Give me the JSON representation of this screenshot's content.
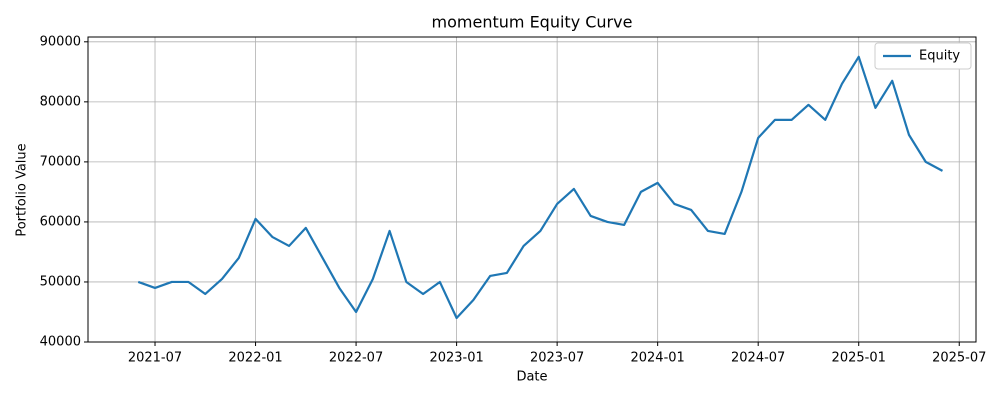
{
  "chart_data": {
    "type": "line",
    "title": "momentum Equity Curve",
    "x_label": "Date",
    "y_label": "Portfolio Value",
    "x": [
      "2021-06",
      "2021-07",
      "2021-08",
      "2021-09",
      "2021-10",
      "2021-11",
      "2021-12",
      "2022-01",
      "2022-02",
      "2022-03",
      "2022-04",
      "2022-05",
      "2022-06",
      "2022-07",
      "2022-08",
      "2022-09",
      "2022-10",
      "2022-11",
      "2022-12",
      "2023-01",
      "2023-02",
      "2023-03",
      "2023-04",
      "2023-05",
      "2023-06",
      "2023-07",
      "2023-08",
      "2023-09",
      "2023-10",
      "2023-11",
      "2023-12",
      "2024-01",
      "2024-02",
      "2024-03",
      "2024-04",
      "2024-05",
      "2024-06",
      "2024-07",
      "2024-08",
      "2024-09",
      "2024-10",
      "2024-11",
      "2024-12",
      "2025-01",
      "2025-02",
      "2025-03",
      "2025-04",
      "2025-05",
      "2025-06"
    ],
    "series": [
      {
        "name": "Equity",
        "color": "#1f77b4",
        "values": [
          50000,
          49000,
          50000,
          50000,
          48000,
          50500,
          54000,
          60500,
          57500,
          56000,
          59000,
          54000,
          49000,
          45000,
          50500,
          58500,
          50000,
          48000,
          50000,
          44000,
          47000,
          51000,
          51500,
          56000,
          58500,
          63000,
          65500,
          61000,
          60000,
          59500,
          65000,
          66500,
          63000,
          62000,
          58500,
          58000,
          65000,
          74000,
          77000,
          77000,
          79500,
          77000,
          83000,
          87500,
          79000,
          83500,
          74500,
          70000,
          68500
        ]
      }
    ],
    "xlim": [
      "2021-03",
      "2025-08"
    ],
    "xticks": [
      "2021-07",
      "2022-01",
      "2022-07",
      "2023-01",
      "2023-07",
      "2024-01",
      "2024-07",
      "2025-01",
      "2025-07"
    ],
    "ylim": [
      40000,
      90800
    ],
    "yticks": [
      40000,
      50000,
      60000,
      70000,
      80000,
      90000
    ],
    "grid": true,
    "legend": "upper right"
  }
}
